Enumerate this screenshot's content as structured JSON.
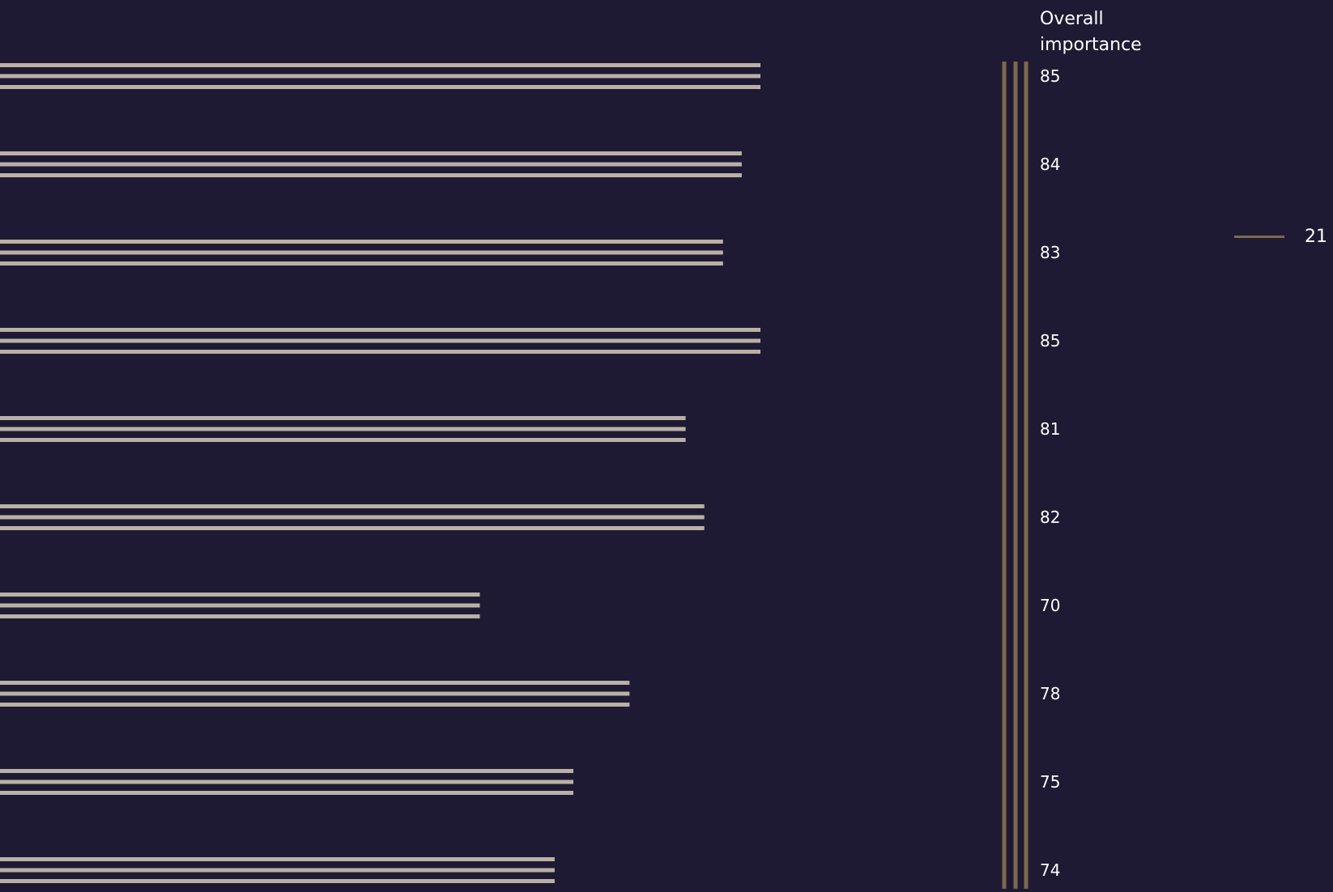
{
  "header": {
    "line1": "Overall",
    "line2": "importance"
  },
  "chart_data": {
    "type": "bar",
    "orientation": "horizontal",
    "values": [
      85,
      84,
      83,
      85,
      81,
      82,
      70,
      78,
      75,
      74
    ],
    "value_labels": [
      "85",
      "84",
      "83",
      "85",
      "81",
      "82",
      "70",
      "78",
      "75",
      "74"
    ],
    "bar_color": "#b9b1a6",
    "accent_color": "#7b6a4c",
    "background": "#1f1a33",
    "grid": false
  },
  "legend": {
    "label": "21",
    "color": "#7b6a4c"
  }
}
